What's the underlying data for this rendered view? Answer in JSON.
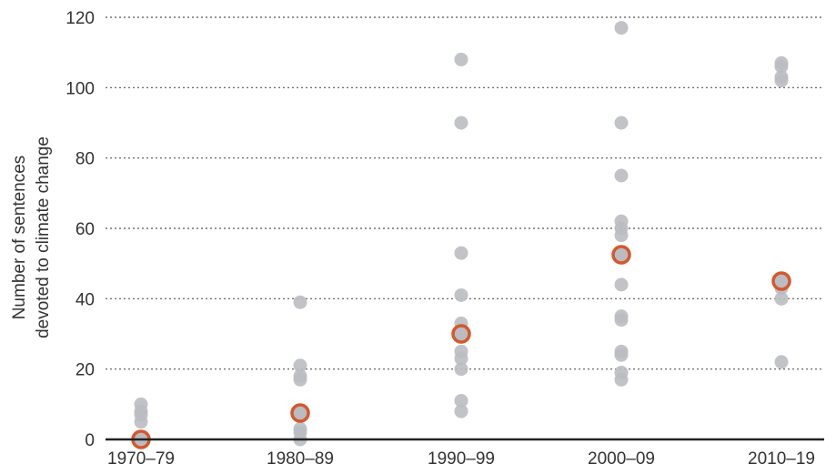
{
  "chart_data": {
    "type": "scatter",
    "ylabel_lines": [
      "Number of sentences",
      "devoted to climate change"
    ],
    "categories": [
      "1970–79",
      "1980–89",
      "1990–99",
      "2000–09",
      "2010–19"
    ],
    "ylim": [
      0,
      120
    ],
    "yticks": [
      0,
      20,
      40,
      60,
      80,
      100,
      120
    ],
    "grid": true,
    "series": [
      {
        "values_by_category": [
          [
            10,
            8,
            7,
            5,
            0,
            0
          ],
          [
            39,
            21,
            18,
            17,
            8,
            3,
            2,
            0
          ],
          [
            108,
            90,
            53,
            41,
            33,
            31,
            25,
            23,
            20,
            11,
            8
          ],
          [
            117,
            90,
            75,
            62,
            60,
            58,
            53,
            44,
            35,
            34,
            25,
            24,
            19,
            17
          ],
          [
            107,
            106,
            103,
            102,
            45,
            43,
            40,
            22
          ]
        ]
      },
      {
        "values": [
          0,
          7.5,
          30,
          52.5,
          45
        ]
      }
    ],
    "colors": {
      "points": "#babcc1",
      "highlight": "#d4582e",
      "axis": "#222222",
      "grid": "#555555"
    }
  }
}
